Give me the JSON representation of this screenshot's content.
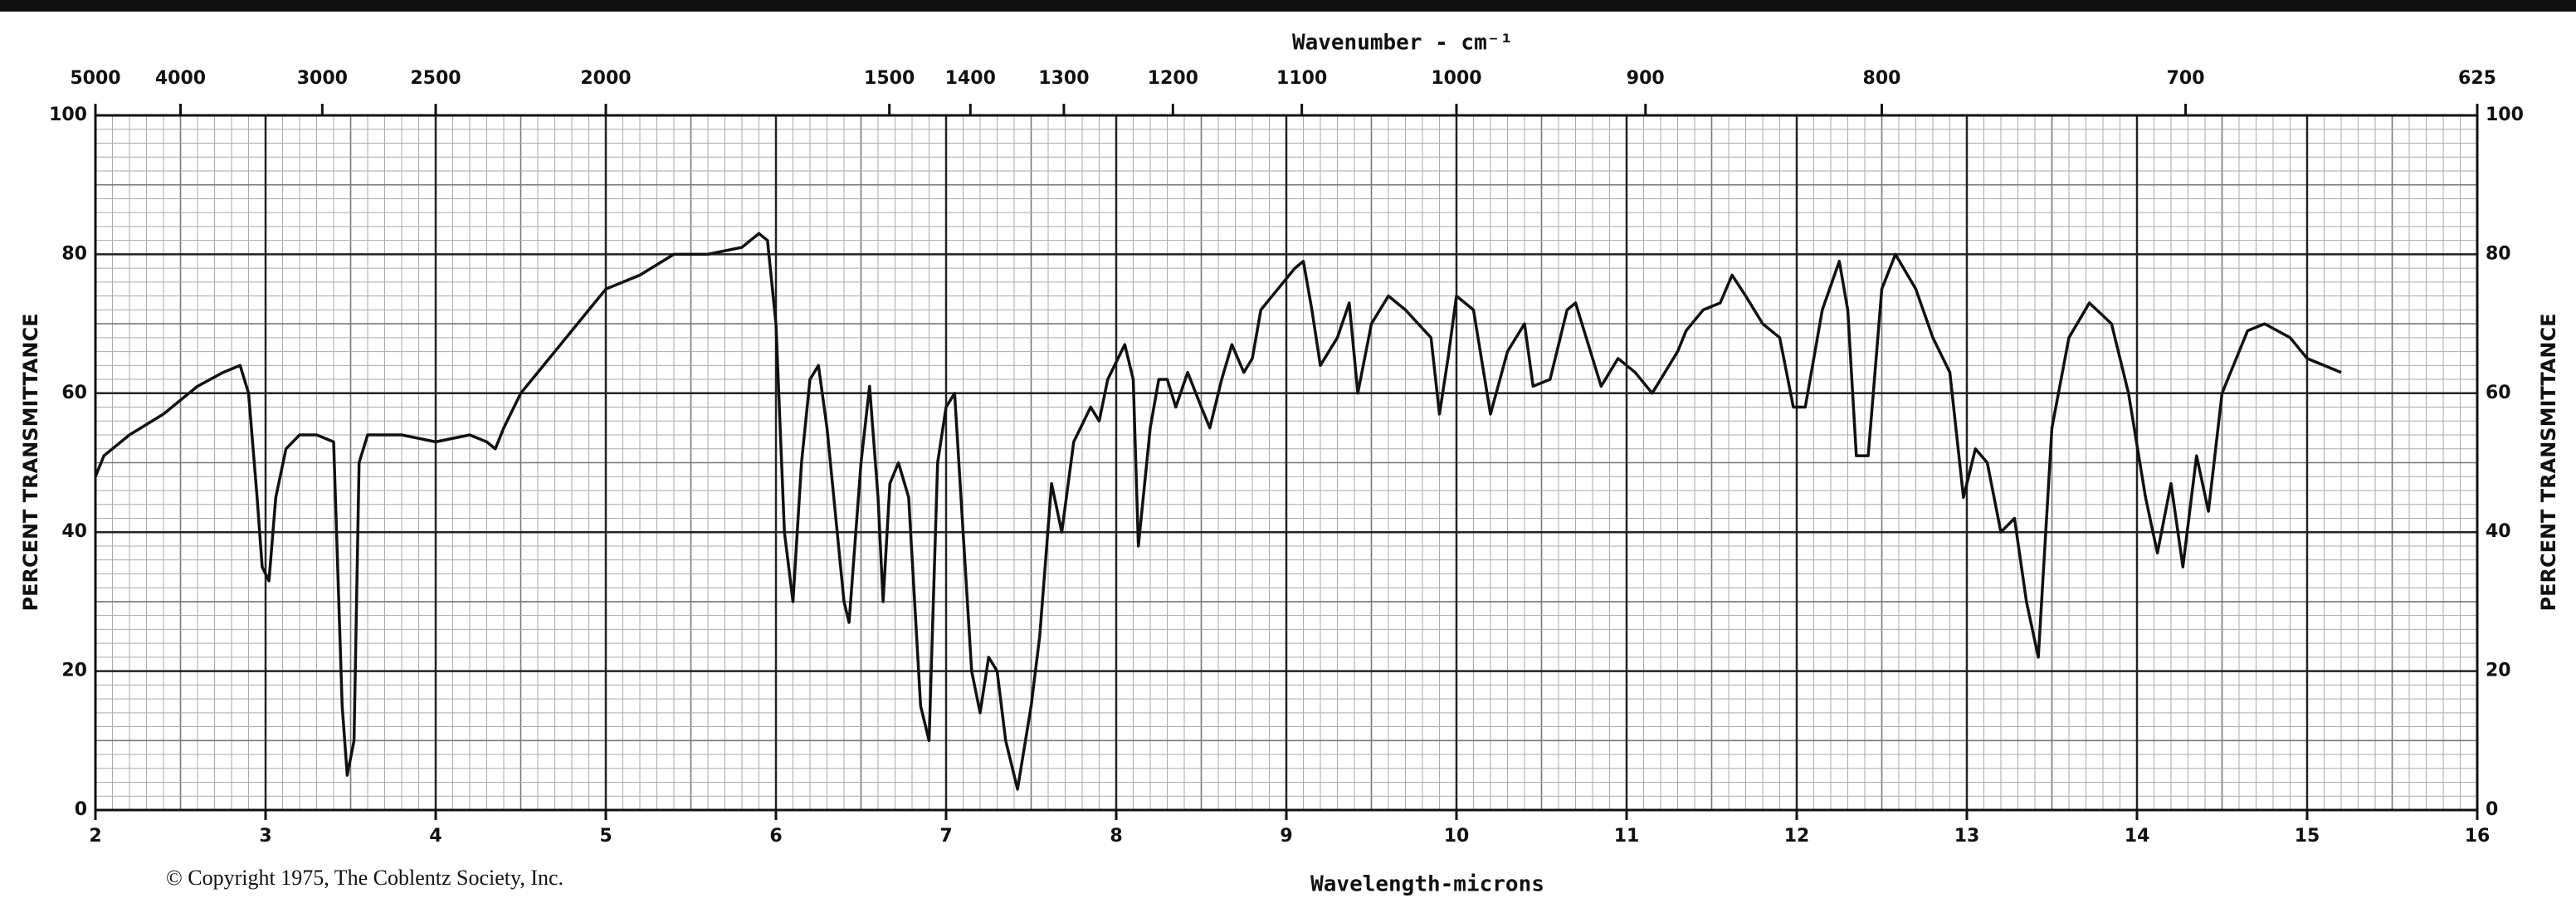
{
  "chart_data": {
    "type": "line",
    "x2label": "Wavenumber - cm⁻¹",
    "xlabel": "Wavelength-microns",
    "ylabel": "PERCENT TRANSMITTANCE",
    "copyright": "© Copyright 1975, The Coblentz Society, Inc.",
    "color": "#111111",
    "grid": true,
    "xlim": [
      2,
      16
    ],
    "xticks": [
      2,
      3,
      4,
      5,
      6,
      7,
      8,
      9,
      10,
      11,
      12,
      13,
      14,
      15,
      16
    ],
    "x2ticks": [
      5000,
      4000,
      3000,
      2500,
      2000,
      1500,
      1400,
      1300,
      1200,
      1100,
      1000,
      900,
      800,
      700,
      625
    ],
    "ylim": [
      0,
      100
    ],
    "yticks": [
      0,
      20,
      40,
      60,
      80,
      100
    ],
    "x": [
      2.0,
      2.05,
      2.2,
      2.4,
      2.6,
      2.75,
      2.85,
      2.9,
      2.95,
      2.98,
      3.02,
      3.06,
      3.12,
      3.2,
      3.3,
      3.4,
      3.45,
      3.48,
      3.52,
      3.55,
      3.6,
      3.8,
      4.0,
      4.2,
      4.3,
      4.35,
      4.4,
      4.5,
      4.7,
      4.9,
      5.0,
      5.2,
      5.4,
      5.6,
      5.8,
      5.9,
      5.95,
      6.0,
      6.05,
      6.1,
      6.15,
      6.2,
      6.25,
      6.3,
      6.4,
      6.43,
      6.5,
      6.55,
      6.6,
      6.63,
      6.67,
      6.72,
      6.78,
      6.85,
      6.9,
      6.95,
      7.0,
      7.05,
      7.1,
      7.15,
      7.2,
      7.25,
      7.3,
      7.35,
      7.42,
      7.5,
      7.55,
      7.62,
      7.68,
      7.75,
      7.85,
      7.9,
      7.95,
      8.05,
      8.1,
      8.13,
      8.2,
      8.25,
      8.3,
      8.35,
      8.42,
      8.5,
      8.55,
      8.62,
      8.68,
      8.75,
      8.8,
      8.85,
      8.95,
      9.05,
      9.1,
      9.15,
      9.2,
      9.3,
      9.37,
      9.42,
      9.5,
      9.6,
      9.7,
      9.85,
      9.9,
      9.95,
      10.0,
      10.1,
      10.18,
      10.2,
      10.3,
      10.4,
      10.45,
      10.55,
      10.65,
      10.7,
      10.85,
      10.95,
      11.05,
      11.15,
      11.3,
      11.35,
      11.45,
      11.55,
      11.62,
      11.7,
      11.8,
      11.9,
      11.98,
      12.05,
      12.15,
      12.25,
      12.3,
      12.35,
      12.42,
      12.5,
      12.58,
      12.7,
      12.8,
      12.9,
      12.98,
      13.05,
      13.12,
      13.2,
      13.28,
      13.35,
      13.42,
      13.5,
      13.6,
      13.72,
      13.85,
      13.95,
      14.05,
      14.12,
      14.2,
      14.27,
      14.35,
      14.42,
      14.5,
      14.65,
      14.75,
      14.9,
      15.0,
      15.1,
      15.2
    ],
    "values": [
      48,
      51,
      54,
      57,
      61,
      63,
      64,
      60,
      45,
      35,
      33,
      45,
      52,
      54,
      54,
      53,
      15,
      5,
      10,
      50,
      54,
      54,
      53,
      54,
      53,
      52,
      55,
      60,
      66,
      72,
      75,
      77,
      80,
      80,
      81,
      83,
      82,
      70,
      40,
      30,
      50,
      62,
      64,
      55,
      30,
      27,
      50,
      61,
      45,
      30,
      47,
      50,
      45,
      15,
      10,
      50,
      58,
      60,
      40,
      20,
      14,
      22,
      20,
      10,
      3,
      15,
      25,
      47,
      40,
      53,
      58,
      56,
      62,
      67,
      62,
      38,
      55,
      62,
      62,
      58,
      63,
      58,
      55,
      62,
      67,
      63,
      65,
      72,
      75,
      78,
      79,
      72,
      64,
      68,
      73,
      60,
      70,
      74,
      72,
      68,
      57,
      65,
      74,
      72,
      60,
      57,
      66,
      70,
      61,
      62,
      72,
      73,
      61,
      65,
      63,
      60,
      66,
      69,
      72,
      73,
      77,
      74,
      70,
      68,
      58,
      58,
      72,
      79,
      72,
      51,
      51,
      75,
      80,
      75,
      68,
      63,
      45,
      52,
      50,
      40,
      42,
      30,
      22,
      55,
      68,
      73,
      70,
      60,
      45,
      37,
      47,
      35,
      51,
      43,
      60,
      69,
      70,
      68,
      65,
      64,
      63
    ]
  }
}
